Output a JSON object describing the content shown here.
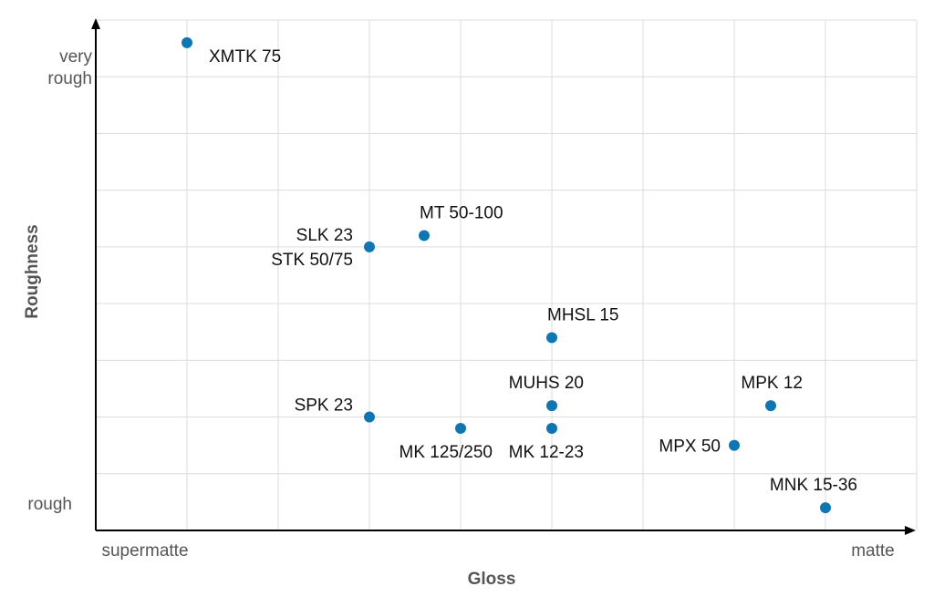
{
  "chart_data": {
    "type": "scatter",
    "xlabel": "Gloss",
    "ylabel": "Roughness",
    "x_tick_labels": {
      "min": "supermatte",
      "max": "matte"
    },
    "y_tick_labels": {
      "min": "rough",
      "max_line1": "very",
      "max_line2": "rough"
    },
    "grid": true,
    "color": "#0e77b3",
    "xlim": [
      0,
      9
    ],
    "ylim": [
      0,
      9
    ],
    "points": [
      {
        "label": "XMTK 75",
        "x": 1,
        "y": 8.6,
        "label_pos": "right-below"
      },
      {
        "label": "SLK 23",
        "x": 3,
        "y": 5,
        "label_pos": "left-above"
      },
      {
        "label": "STK 50/75",
        "x": 3,
        "y": 5,
        "label_pos": "left-below"
      },
      {
        "label": "MT 50-100",
        "x": 3.6,
        "y": 5.2,
        "label_pos": "above-right"
      },
      {
        "label": "MHSL 15",
        "x": 5,
        "y": 3.4,
        "label_pos": "above-right"
      },
      {
        "label": "SPK 23",
        "x": 3,
        "y": 2,
        "label_pos": "left-above"
      },
      {
        "label": "MK 125/250",
        "x": 4,
        "y": 1.8,
        "label_pos": "below-left"
      },
      {
        "label": "MUHS 20",
        "x": 5,
        "y": 2.2,
        "label_pos": "above-left"
      },
      {
        "label": "MK 12-23",
        "x": 5,
        "y": 1.8,
        "label_pos": "below-left"
      },
      {
        "label": "MPK 12",
        "x": 7.4,
        "y": 2.2,
        "label_pos": "above-left"
      },
      {
        "label": "MPX 50",
        "x": 7,
        "y": 1.5,
        "label_pos": "left"
      },
      {
        "label": "MNK 15-36",
        "x": 8,
        "y": 0.4,
        "label_pos": "above-left"
      }
    ]
  }
}
